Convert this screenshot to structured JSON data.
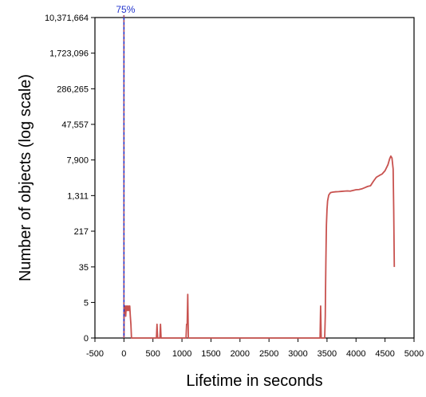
{
  "chart_data": {
    "type": "line",
    "title": "",
    "xlabel": "Lifetime in seconds",
    "ylabel": "Number of objects (log scale)",
    "y_scale": "log",
    "xlim": [
      -500,
      5000
    ],
    "x_ticks": [
      "-500",
      "0",
      "500",
      "1000",
      "1500",
      "2000",
      "2500",
      "3000",
      "3500",
      "4000",
      "4500",
      "5000"
    ],
    "y_ticks": [
      "0",
      "5",
      "35",
      "217",
      "1,311",
      "7,900",
      "47,557",
      "286,265",
      "1,723,096",
      "10,371,664"
    ],
    "grid": false,
    "legend": "none",
    "series": [
      {
        "color": "#c8524f",
        "points": [
          [
            0,
            0
          ],
          [
            2,
            3
          ],
          [
            5,
            4
          ],
          [
            10,
            3
          ],
          [
            20,
            4
          ],
          [
            30,
            2
          ],
          [
            40,
            4
          ],
          [
            50,
            3
          ],
          [
            60,
            4
          ],
          [
            70,
            3
          ],
          [
            80,
            4
          ],
          [
            90,
            3
          ],
          [
            100,
            4
          ],
          [
            110,
            2
          ],
          [
            120,
            1
          ],
          [
            130,
            0
          ],
          [
            560,
            0
          ],
          [
            570,
            1
          ],
          [
            580,
            0
          ],
          [
            620,
            0
          ],
          [
            630,
            1
          ],
          [
            640,
            0
          ],
          [
            1070,
            0
          ],
          [
            1080,
            1
          ],
          [
            1090,
            1
          ],
          [
            1100,
            8
          ],
          [
            1110,
            0
          ],
          [
            3380,
            0
          ],
          [
            3390,
            4
          ],
          [
            3400,
            0
          ],
          [
            3460,
            0
          ],
          [
            3470,
            2
          ],
          [
            3475,
            11
          ],
          [
            3480,
            40
          ],
          [
            3485,
            120
          ],
          [
            3490,
            300
          ],
          [
            3500,
            650
          ],
          [
            3510,
            1000
          ],
          [
            3530,
            1350
          ],
          [
            3560,
            1520
          ],
          [
            3600,
            1560
          ],
          [
            3650,
            1590
          ],
          [
            3700,
            1600
          ],
          [
            3750,
            1620
          ],
          [
            3800,
            1640
          ],
          [
            3850,
            1660
          ],
          [
            3900,
            1640
          ],
          [
            3950,
            1700
          ],
          [
            4000,
            1760
          ],
          [
            4050,
            1780
          ],
          [
            4100,
            1840
          ],
          [
            4150,
            1950
          ],
          [
            4200,
            2080
          ],
          [
            4250,
            2150
          ],
          [
            4300,
            2700
          ],
          [
            4350,
            3300
          ],
          [
            4400,
            3600
          ],
          [
            4450,
            3900
          ],
          [
            4500,
            4600
          ],
          [
            4550,
            6200
          ],
          [
            4580,
            8400
          ],
          [
            4600,
            9600
          ],
          [
            4620,
            8700
          ],
          [
            4640,
            5000
          ],
          [
            4650,
            600
          ],
          [
            4660,
            35
          ]
        ]
      }
    ],
    "annotations": [
      {
        "type": "vertical-line",
        "x": 0,
        "label": "75%",
        "color": "#2233cc"
      }
    ]
  }
}
